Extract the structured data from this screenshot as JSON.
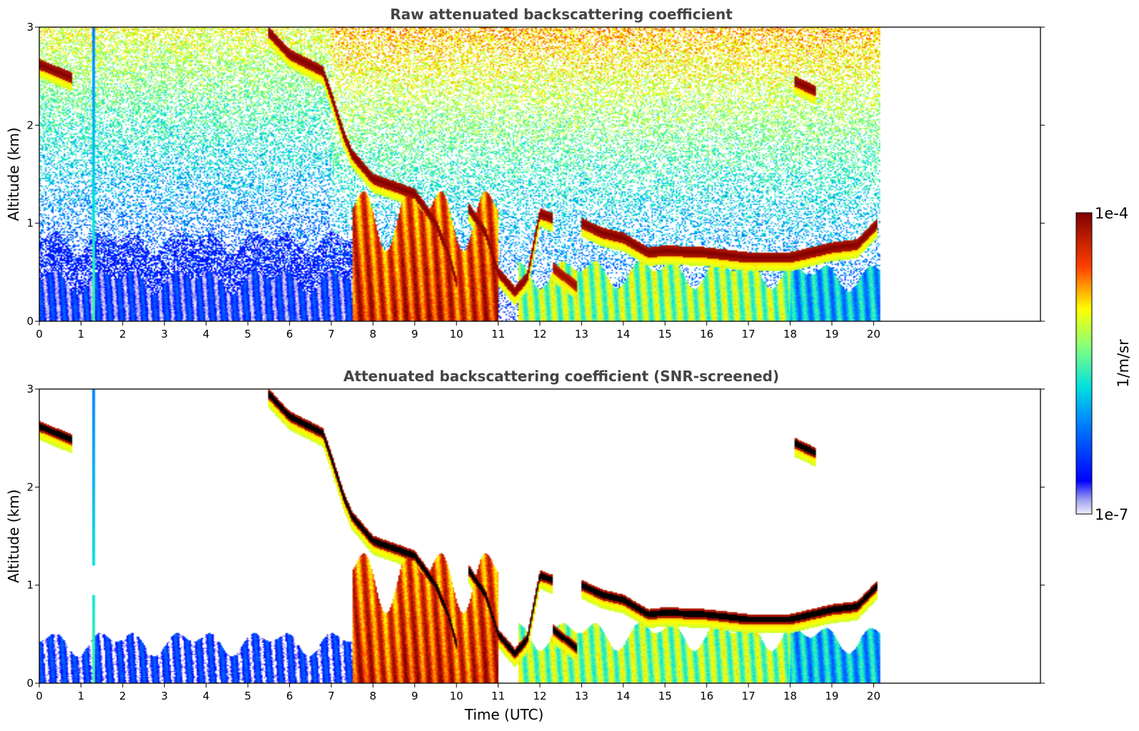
{
  "chart_data": [
    {
      "type": "heatmap",
      "title": "Raw attenuated backscattering coefficient",
      "xlabel": "",
      "ylabel": "Altitude (km)",
      "xlim": [
        0,
        24
      ],
      "ylim": [
        0,
        3
      ],
      "x_ticks": [
        "0",
        "1",
        "2",
        "3",
        "4",
        "5",
        "6",
        "7",
        "8",
        "9",
        "10",
        "11",
        "12",
        "13",
        "14",
        "15",
        "16",
        "17",
        "18",
        "19",
        "20"
      ],
      "y_ticks": [
        "0",
        "1",
        "2",
        "3"
      ],
      "data_extent_hours": [
        0,
        20.15
      ],
      "features": [
        {
          "kind": "cloud_layer",
          "points": [
            [
              0,
              2.62
            ],
            [
              0.8,
              2.48
            ]
          ],
          "value_log10": -4.0
        },
        {
          "kind": "cloud_layer",
          "points": [
            [
              5.5,
              2.95
            ],
            [
              6.0,
              2.72
            ],
            [
              6.8,
              2.55
            ],
            [
              7.0,
              2.3
            ],
            [
              7.3,
              1.9
            ],
            [
              7.5,
              1.7
            ],
            [
              8.0,
              1.45
            ],
            [
              9.0,
              1.3
            ],
            [
              9.5,
              1.0
            ],
            [
              9.8,
              0.7
            ],
            [
              10.0,
              0.4
            ]
          ],
          "value_log10": -4.0
        },
        {
          "kind": "cloud_layer",
          "points": [
            [
              10.3,
              1.15
            ],
            [
              10.7,
              0.9
            ],
            [
              11.0,
              0.5
            ],
            [
              11.4,
              0.3
            ],
            [
              11.7,
              0.45
            ],
            [
              12.0,
              1.1
            ],
            [
              12.3,
              1.05
            ]
          ],
          "value_log10": -4.0
        },
        {
          "kind": "cloud_layer",
          "points": [
            [
              12.3,
              0.55
            ],
            [
              12.9,
              0.35
            ]
          ],
          "value_log10": -4.1
        },
        {
          "kind": "cloud_layer",
          "points": [
            [
              13.0,
              1.0
            ],
            [
              13.5,
              0.9
            ],
            [
              14.0,
              0.85
            ],
            [
              14.6,
              0.7
            ],
            [
              15.0,
              0.72
            ],
            [
              16.0,
              0.7
            ],
            [
              17.0,
              0.65
            ],
            [
              18.0,
              0.65
            ],
            [
              19.0,
              0.75
            ],
            [
              19.6,
              0.78
            ],
            [
              20.1,
              1.0
            ]
          ],
          "value_log10": -4.0
        },
        {
          "kind": "cloud_layer",
          "points": [
            [
              18.1,
              2.45
            ],
            [
              18.6,
              2.35
            ]
          ],
          "value_log10": -4.0
        },
        {
          "kind": "aerosol_boundary_layer",
          "x_range": [
            0,
            7.5
          ],
          "top_km": 0.5,
          "value_log10": -6.6
        },
        {
          "kind": "aerosol_boundary_layer",
          "x_range": [
            7.5,
            11.0
          ],
          "top_km": 1.3,
          "value_log10": -4.6
        },
        {
          "kind": "aerosol_boundary_layer",
          "x_range": [
            11.5,
            18.0
          ],
          "top_km": 0.6,
          "value_log10": -5.3
        },
        {
          "kind": "aerosol_boundary_layer",
          "x_range": [
            18.0,
            20.15
          ],
          "top_km": 0.55,
          "value_log10": -5.9
        },
        {
          "kind": "precipitation_streak",
          "x": 1.3,
          "value_log10": -5.5
        },
        {
          "kind": "noise_background",
          "description": "speckle above 1 km"
        }
      ]
    },
    {
      "type": "heatmap",
      "title": "Attenuated backscattering coefficient (SNR-screened)",
      "xlabel": "Time (UTC)",
      "ylabel": "Altitude (km)",
      "xlim": [
        0,
        24
      ],
      "ylim": [
        0,
        3
      ],
      "x_ticks": [
        "0",
        "1",
        "2",
        "3",
        "4",
        "5",
        "6",
        "7",
        "8",
        "9",
        "10",
        "11",
        "12",
        "13",
        "14",
        "15",
        "16",
        "17",
        "18",
        "19",
        "20"
      ],
      "y_ticks": [
        "0",
        "1",
        "2",
        "3"
      ],
      "data_extent_hours": [
        0,
        20.15
      ],
      "note_screened": "noise removed; strongest returns saturated to black"
    }
  ],
  "colorbar": {
    "label": "1/m/sr",
    "max_label": "1e-4",
    "min_label": "1e-7",
    "scale": "log",
    "range": [
      1e-07,
      0.0001
    ],
    "colormap": "jet-with-light-low-end"
  }
}
